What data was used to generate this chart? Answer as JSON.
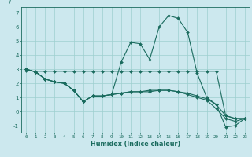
{
  "x": [
    0,
    1,
    2,
    3,
    4,
    5,
    6,
    7,
    8,
    9,
    10,
    11,
    12,
    13,
    14,
    15,
    16,
    17,
    18,
    19,
    20,
    21,
    22,
    23
  ],
  "line1": [
    3.0,
    2.8,
    2.3,
    2.1,
    2.0,
    1.5,
    0.7,
    1.1,
    1.1,
    1.2,
    3.5,
    4.9,
    4.8,
    3.7,
    6.0,
    6.8,
    6.6,
    5.6,
    2.7,
    1.0,
    0.5,
    -1.1,
    -1.0,
    -0.5
  ],
  "line2": [
    3.0,
    2.8,
    2.3,
    2.1,
    2.0,
    1.5,
    0.7,
    1.1,
    1.1,
    1.2,
    1.3,
    1.4,
    1.4,
    1.5,
    1.5,
    1.5,
    1.4,
    1.3,
    1.1,
    0.9,
    0.5,
    -0.3,
    -0.5,
    -0.5
  ],
  "line3": [
    3.0,
    2.8,
    2.3,
    2.1,
    2.0,
    1.5,
    0.7,
    1.1,
    1.1,
    1.2,
    1.3,
    1.4,
    1.4,
    1.4,
    1.5,
    1.5,
    1.4,
    1.2,
    1.0,
    0.8,
    0.2,
    -0.5,
    -0.7,
    -0.5
  ],
  "line4": [
    2.9,
    2.85,
    2.85,
    2.85,
    2.85,
    2.85,
    2.85,
    2.85,
    2.85,
    2.85,
    2.85,
    2.85,
    2.85,
    2.85,
    2.85,
    2.85,
    2.85,
    2.85,
    2.85,
    2.85,
    2.85,
    -0.3,
    -0.5,
    -0.5
  ],
  "line_color": "#1a6b5e",
  "bg_color": "#cce8ee",
  "grid_color": "#9ecfcf",
  "xlabel": "Humidex (Indice chaleur)",
  "xlim": [
    -0.5,
    23.5
  ],
  "ylim": [
    -1.5,
    7.4
  ],
  "yticks": [
    -1,
    0,
    1,
    2,
    3,
    4,
    5,
    6,
    7
  ],
  "xticks": [
    0,
    1,
    2,
    3,
    4,
    5,
    6,
    7,
    8,
    9,
    10,
    11,
    12,
    13,
    14,
    15,
    16,
    17,
    18,
    19,
    20,
    21,
    22,
    23
  ]
}
